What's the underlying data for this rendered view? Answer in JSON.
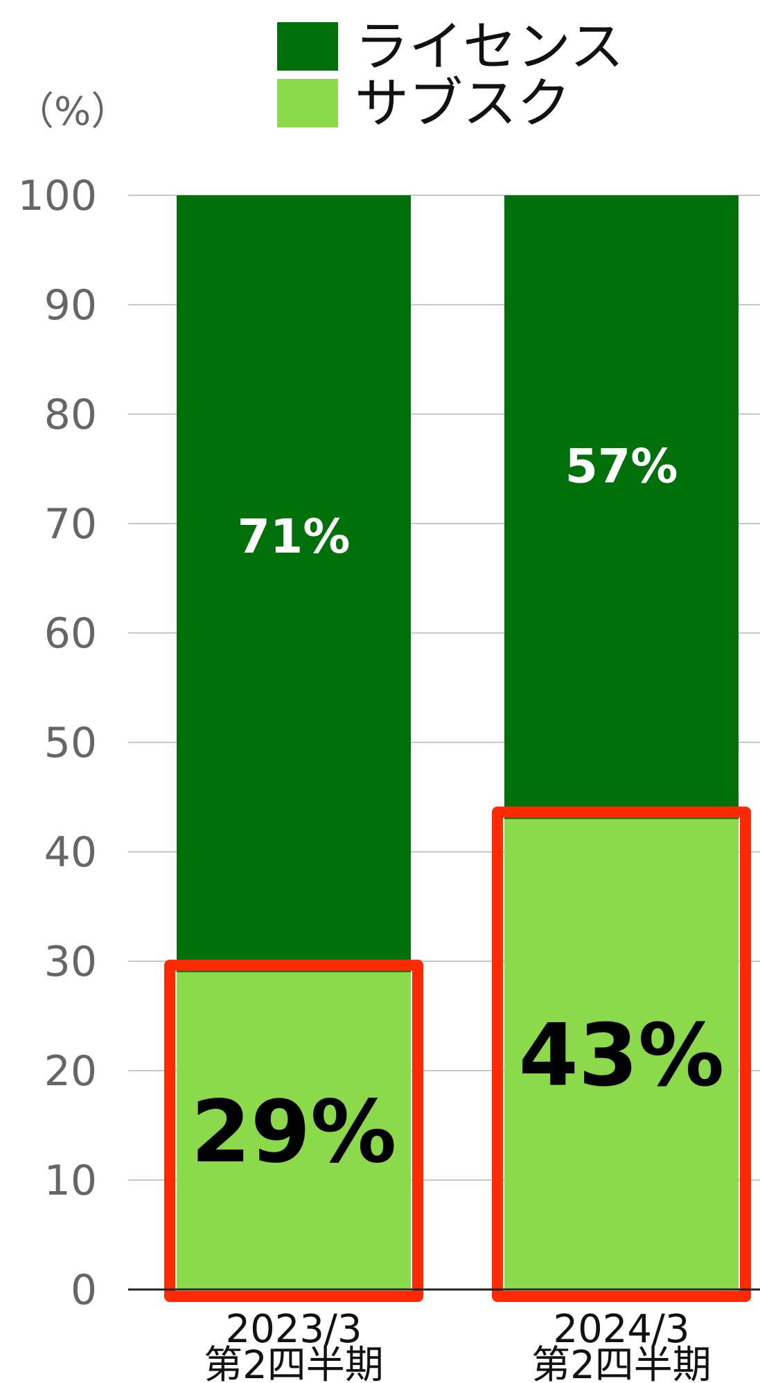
{
  "chart_data": {
    "type": "bar",
    "stacked": true,
    "unit_label": "（%）",
    "categories": [
      [
        "2023/3",
        "第2四半期"
      ],
      [
        "2024/3",
        "第2四半期"
      ]
    ],
    "series": [
      {
        "name": "サブスク",
        "values": [
          29,
          43
        ],
        "labels": [
          "29%",
          "43%"
        ],
        "color": "#8cd94b"
      },
      {
        "name": "ライセンス",
        "values": [
          71,
          57
        ],
        "labels": [
          "71%",
          "57%"
        ],
        "color": "#00700b"
      }
    ],
    "highlight_series": "サブスク",
    "highlight_color": "#ff2a00",
    "ylim": [
      0,
      100
    ],
    "yticks": [
      0,
      10,
      20,
      30,
      40,
      50,
      60,
      70,
      80,
      90,
      100
    ],
    "grid": true,
    "legend_position": "top"
  }
}
